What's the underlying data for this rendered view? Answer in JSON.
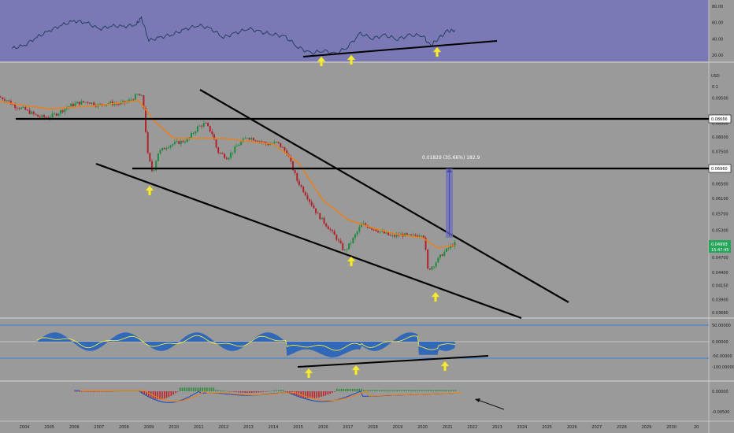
{
  "chart_data": {
    "type": "candlestick",
    "symbol_unit": "USD",
    "y_unit_label": "USD",
    "price_axis": {
      "scale": "log",
      "ylim": [
        0.0357,
        0.1003
      ],
      "ticks": [
        "0.1",
        "0.09500",
        "0.08500",
        "0.08000",
        "0.07500",
        "0.07000",
        "0.06500",
        "0.06100",
        "0.05700",
        "0.05300",
        "0.04700",
        "0.04400",
        "0.04150",
        "0.03900",
        "0.03680"
      ]
    },
    "x_axis": {
      "ticks": [
        "2004",
        "2005",
        "2006",
        "2007",
        "2008",
        "2009",
        "2010",
        "2011",
        "2012",
        "2013",
        "2014",
        "2015",
        "2016",
        "2017",
        "2018",
        "2019",
        "2020",
        "2021",
        "2022",
        "2023",
        "2024",
        "2025",
        "2026",
        "2027",
        "2028",
        "2029",
        "2030",
        "20"
      ]
    },
    "key_levels": [
      {
        "label": "0.08666",
        "value": 0.08666
      },
      {
        "label": "0.06960",
        "value": 0.0696
      }
    ],
    "current_price": {
      "label": "0.04993",
      "countdown": "15:47:45",
      "value": 0.04993
    },
    "measurement": {
      "text": "0.01829 (35.66%) 182.9",
      "from": 0.0513,
      "to": 0.0696
    },
    "price_series": [
      {
        "x": 2003.0,
        "y": 0.0955
      },
      {
        "x": 2003.3,
        "y": 0.0945
      },
      {
        "x": 2003.6,
        "y": 0.092
      },
      {
        "x": 2004.0,
        "y": 0.0905
      },
      {
        "x": 2004.3,
        "y": 0.089
      },
      {
        "x": 2004.6,
        "y": 0.0875
      },
      {
        "x": 2005.0,
        "y": 0.0872
      },
      {
        "x": 2005.4,
        "y": 0.089
      },
      {
        "x": 2005.8,
        "y": 0.0915
      },
      {
        "x": 2006.2,
        "y": 0.093
      },
      {
        "x": 2006.6,
        "y": 0.0935
      },
      {
        "x": 2007.0,
        "y": 0.092
      },
      {
        "x": 2007.4,
        "y": 0.093
      },
      {
        "x": 2007.8,
        "y": 0.0925
      },
      {
        "x": 2008.2,
        "y": 0.0935
      },
      {
        "x": 2008.6,
        "y": 0.0965
      },
      {
        "x": 2008.8,
        "y": 0.095
      },
      {
        "x": 2009.0,
        "y": 0.074
      },
      {
        "x": 2009.2,
        "y": 0.068
      },
      {
        "x": 2009.4,
        "y": 0.0745
      },
      {
        "x": 2009.8,
        "y": 0.077
      },
      {
        "x": 2010.2,
        "y": 0.078
      },
      {
        "x": 2010.6,
        "y": 0.079
      },
      {
        "x": 2011.0,
        "y": 0.0835
      },
      {
        "x": 2011.3,
        "y": 0.085
      },
      {
        "x": 2011.6,
        "y": 0.081
      },
      {
        "x": 2011.8,
        "y": 0.075
      },
      {
        "x": 2012.2,
        "y": 0.073
      },
      {
        "x": 2012.6,
        "y": 0.077
      },
      {
        "x": 2013.0,
        "y": 0.08
      },
      {
        "x": 2013.4,
        "y": 0.079
      },
      {
        "x": 2013.8,
        "y": 0.0775
      },
      {
        "x": 2014.2,
        "y": 0.078
      },
      {
        "x": 2014.6,
        "y": 0.0745
      },
      {
        "x": 2015.0,
        "y": 0.066
      },
      {
        "x": 2015.4,
        "y": 0.0615
      },
      {
        "x": 2015.8,
        "y": 0.057
      },
      {
        "x": 2016.2,
        "y": 0.054
      },
      {
        "x": 2016.6,
        "y": 0.051
      },
      {
        "x": 2016.9,
        "y": 0.0482
      },
      {
        "x": 2017.2,
        "y": 0.0505
      },
      {
        "x": 2017.6,
        "y": 0.0545
      },
      {
        "x": 2018.0,
        "y": 0.0535
      },
      {
        "x": 2018.4,
        "y": 0.0525
      },
      {
        "x": 2018.8,
        "y": 0.0515
      },
      {
        "x": 2019.2,
        "y": 0.052
      },
      {
        "x": 2019.6,
        "y": 0.0515
      },
      {
        "x": 2020.0,
        "y": 0.0522
      },
      {
        "x": 2020.1,
        "y": 0.0515
      },
      {
        "x": 2020.25,
        "y": 0.0445
      },
      {
        "x": 2020.5,
        "y": 0.0455
      },
      {
        "x": 2020.8,
        "y": 0.0475
      },
      {
        "x": 2021.1,
        "y": 0.049
      },
      {
        "x": 2021.3,
        "y": 0.0499
      }
    ],
    "sma_series": [
      {
        "x": 2003.0,
        "y": 0.0935
      },
      {
        "x": 2005.0,
        "y": 0.0905
      },
      {
        "x": 2007.0,
        "y": 0.092
      },
      {
        "x": 2008.6,
        "y": 0.094
      },
      {
        "x": 2009.2,
        "y": 0.086
      },
      {
        "x": 2010.0,
        "y": 0.0795
      },
      {
        "x": 2011.0,
        "y": 0.0795
      },
      {
        "x": 2012.0,
        "y": 0.0795
      },
      {
        "x": 2013.0,
        "y": 0.0785
      },
      {
        "x": 2014.0,
        "y": 0.0775
      },
      {
        "x": 2015.0,
        "y": 0.0715
      },
      {
        "x": 2016.0,
        "y": 0.0605
      },
      {
        "x": 2017.0,
        "y": 0.0555
      },
      {
        "x": 2018.0,
        "y": 0.0535
      },
      {
        "x": 2019.0,
        "y": 0.052
      },
      {
        "x": 2020.0,
        "y": 0.0512
      },
      {
        "x": 2020.6,
        "y": 0.049
      },
      {
        "x": 2021.3,
        "y": 0.0496
      }
    ],
    "rsi": {
      "ticks": [
        "80.00",
        "60.00",
        "40.00",
        "20.00"
      ],
      "values": [
        {
          "x": 2003.5,
          "y": 28
        },
        {
          "x": 2004.0,
          "y": 32
        },
        {
          "x": 2004.5,
          "y": 42
        },
        {
          "x": 2005.0,
          "y": 50
        },
        {
          "x": 2005.5,
          "y": 57
        },
        {
          "x": 2006.0,
          "y": 62
        },
        {
          "x": 2006.5,
          "y": 60
        },
        {
          "x": 2007.0,
          "y": 52
        },
        {
          "x": 2007.5,
          "y": 56
        },
        {
          "x": 2008.0,
          "y": 55
        },
        {
          "x": 2008.5,
          "y": 58
        },
        {
          "x": 2008.7,
          "y": 66
        },
        {
          "x": 2009.0,
          "y": 38
        },
        {
          "x": 2009.5,
          "y": 42
        },
        {
          "x": 2010.0,
          "y": 46
        },
        {
          "x": 2010.5,
          "y": 52
        },
        {
          "x": 2011.0,
          "y": 57
        },
        {
          "x": 2011.5,
          "y": 52
        },
        {
          "x": 2012.0,
          "y": 42
        },
        {
          "x": 2012.5,
          "y": 47
        },
        {
          "x": 2013.0,
          "y": 53
        },
        {
          "x": 2013.5,
          "y": 48
        },
        {
          "x": 2014.0,
          "y": 46
        },
        {
          "x": 2014.5,
          "y": 42
        },
        {
          "x": 2015.0,
          "y": 30
        },
        {
          "x": 2015.5,
          "y": 22
        },
        {
          "x": 2016.0,
          "y": 26
        },
        {
          "x": 2016.5,
          "y": 21
        },
        {
          "x": 2017.0,
          "y": 31
        },
        {
          "x": 2017.5,
          "y": 46
        },
        {
          "x": 2018.0,
          "y": 41
        },
        {
          "x": 2018.5,
          "y": 44
        },
        {
          "x": 2019.0,
          "y": 40
        },
        {
          "x": 2019.5,
          "y": 44
        },
        {
          "x": 2020.0,
          "y": 45
        },
        {
          "x": 2020.3,
          "y": 31
        },
        {
          "x": 2020.6,
          "y": 40
        },
        {
          "x": 2021.0,
          "y": 49
        },
        {
          "x": 2021.3,
          "y": 51
        }
      ]
    },
    "osc1": {
      "ticks": [
        "50.00000",
        "0.00000",
        "-50.00000",
        "-100.00000"
      ]
    },
    "osc2": {
      "ticks": [
        "0.00000",
        "-0.00500"
      ]
    }
  }
}
